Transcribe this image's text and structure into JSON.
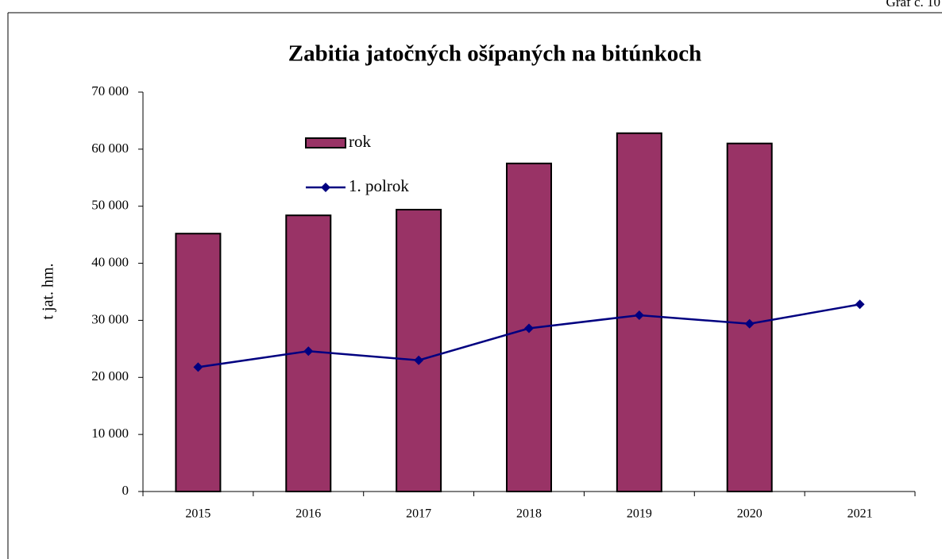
{
  "chart_data": {
    "type": "bar",
    "annotation": "Graf č. 10",
    "title": "Zabitia jatočných ošípaných na bitúnkoch",
    "y_label": "t jat. hm.",
    "categories": [
      "2015",
      "2016",
      "2017",
      "2018",
      "2019",
      "2020",
      "2021"
    ],
    "series": [
      {
        "name": "rok",
        "type": "bar",
        "color": "#993366",
        "values": [
          45200,
          48400,
          49400,
          57500,
          62800,
          61000,
          null
        ]
      },
      {
        "name": "1. polrok",
        "type": "line",
        "color": "#000080",
        "values": [
          21800,
          24600,
          23000,
          28600,
          30900,
          29400,
          32800
        ]
      }
    ],
    "ylim": [
      0,
      70000
    ],
    "yticks": [
      0,
      {
        "value": 10000,
        "label": "10 000"
      },
      {
        "value": 20000,
        "label": "20 000"
      },
      {
        "value": 30000,
        "label": "30 000"
      },
      {
        "value": 40000,
        "label": "40 000"
      },
      {
        "value": 50000,
        "label": "50 000"
      },
      {
        "value": 60000,
        "label": "60 000"
      },
      {
        "value": 70000,
        "label": "70 000"
      }
    ],
    "legend": "top-left",
    "grid": false
  }
}
